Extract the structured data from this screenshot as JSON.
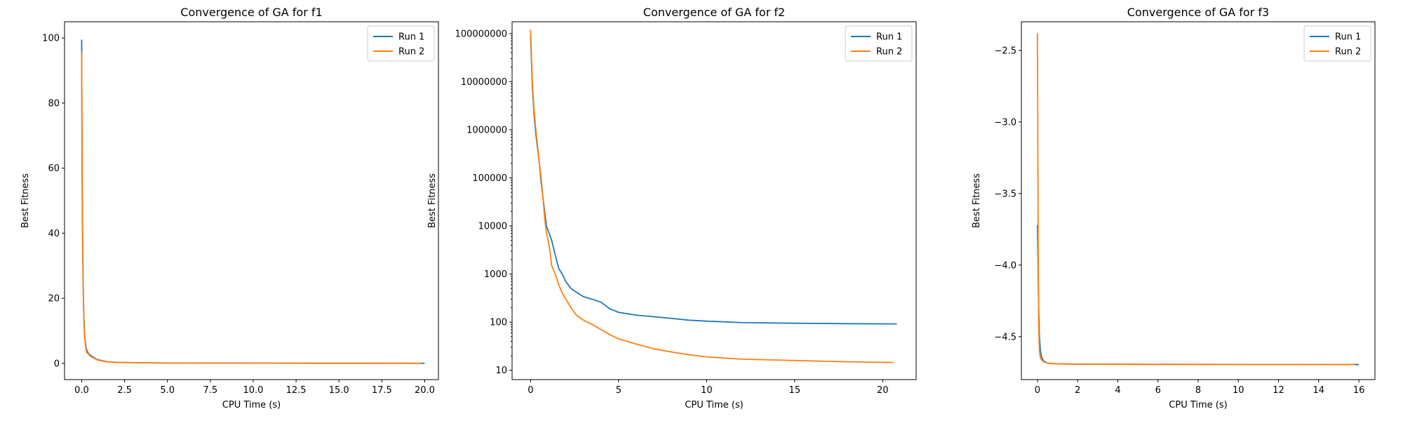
{
  "chart_data": [
    {
      "type": "line",
      "title": "Convergence of GA for f1",
      "xlabel": "CPU Time (s)",
      "ylabel": "Best Fitness",
      "xlim": [
        -1.0,
        20.8
      ],
      "ylim": [
        -5,
        105
      ],
      "xscale": "linear",
      "yscale": "linear",
      "xticks": [
        0,
        2.5,
        5,
        7.5,
        10,
        12.5,
        15,
        17.5,
        20
      ],
      "xtick_labels": [
        "0.0",
        "2.5",
        "5.0",
        "7.5",
        "10.0",
        "12.5",
        "15.0",
        "17.5",
        "20.0"
      ],
      "yticks": [
        0,
        20,
        40,
        60,
        80,
        100
      ],
      "ytick_labels": [
        "0",
        "20",
        "40",
        "60",
        "80",
        "100"
      ],
      "legend": "top-right",
      "grid": false,
      "series": [
        {
          "name": "Run 1",
          "color": "#1f77b4",
          "x": [
            0,
            0.02,
            0.04,
            0.06,
            0.08,
            0.1,
            0.13,
            0.16,
            0.2,
            0.25,
            0.3,
            0.4,
            0.5,
            0.7,
            0.9,
            1.2,
            1.5,
            2.0,
            3.0,
            5.0,
            10.0,
            15.0,
            20.0
          ],
          "y": [
            99.5,
            60,
            44.5,
            35,
            27,
            20,
            14,
            10,
            7,
            5,
            4,
            3,
            2.5,
            1.8,
            1.2,
            0.8,
            0.5,
            0.3,
            0.2,
            0.1,
            0.05,
            0.03,
            0.02
          ]
        },
        {
          "name": "Run 2",
          "color": "#ff7f0e",
          "x": [
            0,
            0.02,
            0.04,
            0.06,
            0.08,
            0.1,
            0.13,
            0.16,
            0.2,
            0.25,
            0.3,
            0.4,
            0.5,
            0.7,
            0.9,
            1.2,
            1.5,
            2.0,
            3.0,
            5.0,
            10.0,
            15.0,
            19.8
          ],
          "y": [
            95.5,
            70,
            50,
            38,
            28,
            20,
            13,
            9,
            6.5,
            4.5,
            3.3,
            2.8,
            2.2,
            1.6,
            1.1,
            0.7,
            0.45,
            0.3,
            0.2,
            0.1,
            0.05,
            0.03,
            0.02
          ]
        }
      ]
    },
    {
      "type": "line",
      "title": "Convergence of GA for f2",
      "xlabel": "CPU Time (s)",
      "ylabel": "Best Fitness",
      "xlim": [
        -1.05,
        21.9
      ],
      "ylim": [
        6.4,
        176000000
      ],
      "xscale": "linear",
      "yscale": "log",
      "xticks": [
        0,
        5,
        10,
        15,
        20
      ],
      "xtick_labels": [
        "0",
        "5",
        "10",
        "15",
        "20"
      ],
      "yticks": [
        10,
        100,
        1000,
        10000,
        100000,
        1000000,
        10000000,
        100000000
      ],
      "ytick_labels": [
        "10",
        "100",
        "1000",
        "10000",
        "100000",
        "1000000",
        "10000000",
        "100000000"
      ],
      "legend": "top-right",
      "grid": false,
      "series": [
        {
          "name": "Run 1",
          "color": "#1f77b4",
          "x": [
            0,
            0.1,
            0.2,
            0.3,
            0.4,
            0.5,
            0.6,
            0.7,
            0.8,
            0.9,
            1.0,
            1.2,
            1.4,
            1.6,
            1.8,
            2.0,
            2.3,
            2.6,
            3.0,
            3.5,
            4.0,
            4.5,
            5.0,
            6.0,
            7.0,
            8.0,
            9.0,
            10.0,
            12.0,
            15.0,
            18.0,
            20.8
          ],
          "y": [
            90000000,
            8000000,
            2000000,
            800000,
            400000,
            200000,
            80000,
            40000,
            20000,
            10000,
            8000,
            5000,
            2500,
            1300,
            1000,
            700,
            500,
            420,
            340,
            300,
            260,
            190,
            160,
            140,
            130,
            120,
            110,
            105,
            98,
            95,
            93,
            92
          ]
        },
        {
          "name": "Run 2",
          "color": "#ff7f0e",
          "x": [
            0,
            0.1,
            0.2,
            0.3,
            0.4,
            0.5,
            0.6,
            0.7,
            0.8,
            0.9,
            1.0,
            1.1,
            1.2,
            1.4,
            1.6,
            1.8,
            2.0,
            2.3,
            2.6,
            3.0,
            3.5,
            4.0,
            4.5,
            5.0,
            6.0,
            7.0,
            8.0,
            9.0,
            10.0,
            12.0,
            15.0,
            18.0,
            20.6
          ],
          "y": [
            120000000,
            10000000,
            2500000,
            1000000,
            450000,
            200000,
            100000,
            40000,
            15000,
            7000,
            5000,
            3000,
            1500,
            1000,
            600,
            400,
            300,
            200,
            140,
            110,
            90,
            70,
            55,
            45,
            35,
            28,
            24,
            21,
            19,
            17,
            16,
            15,
            14.5
          ]
        }
      ]
    },
    {
      "type": "line",
      "title": "Convergence of GA for f3",
      "xlabel": "CPU Time (s)",
      "ylabel": "Best Fitness",
      "xlim": [
        -0.8,
        16.8
      ],
      "ylim": [
        -4.8,
        -2.3
      ],
      "xscale": "linear",
      "yscale": "linear",
      "xticks": [
        0,
        2,
        4,
        6,
        8,
        10,
        12,
        14,
        16
      ],
      "xtick_labels": [
        "0",
        "2",
        "4",
        "6",
        "8",
        "10",
        "12",
        "14",
        "16"
      ],
      "yticks": [
        -4.5,
        -4.0,
        -3.5,
        -3.0,
        -2.5
      ],
      "ytick_labels": [
        "−4.5",
        "−4.0",
        "−3.5",
        "−3.0",
        "−2.5"
      ],
      "legend": "top-right",
      "grid": false,
      "series": [
        {
          "name": "Run 1",
          "color": "#1f77b4",
          "x": [
            0,
            0.03,
            0.06,
            0.1,
            0.15,
            0.2,
            0.3,
            0.5,
            1.0,
            2.0,
            5.0,
            10.0,
            16.0
          ],
          "y": [
            -3.72,
            -4.0,
            -4.3,
            -4.5,
            -4.6,
            -4.64,
            -4.67,
            -4.685,
            -4.69,
            -4.692,
            -4.693,
            -4.694,
            -4.695
          ]
        },
        {
          "name": "Run 2",
          "color": "#ff7f0e",
          "x": [
            0,
            0.02,
            0.04,
            0.06,
            0.1,
            0.15,
            0.2,
            0.3,
            0.5,
            1.0,
            2.0,
            5.0,
            10.0,
            15.8
          ],
          "y": [
            -2.38,
            -3.2,
            -4.0,
            -4.4,
            -4.6,
            -4.65,
            -4.66,
            -4.675,
            -4.685,
            -4.69,
            -4.692,
            -4.693,
            -4.694,
            -4.695
          ]
        }
      ]
    }
  ]
}
